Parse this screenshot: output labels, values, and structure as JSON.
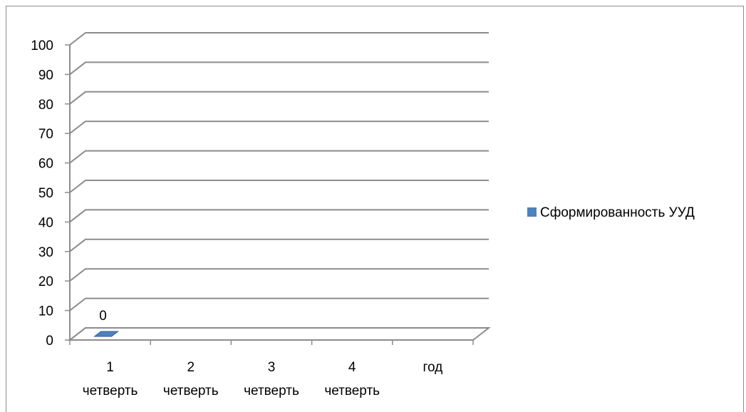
{
  "chart_data": {
    "type": "bar",
    "style": "3d-column",
    "categories": [
      [
        "1",
        "четверть"
      ],
      [
        "2",
        "четверть"
      ],
      [
        "3",
        "четверть"
      ],
      [
        "4",
        "четверть"
      ],
      [
        "год"
      ]
    ],
    "series": [
      {
        "name": "Сформированность УУД",
        "values": [
          0,
          null,
          null,
          null,
          null
        ],
        "color": "#4F81BD"
      }
    ],
    "data_labels": [
      "0",
      null,
      null,
      null,
      null
    ],
    "ylim": [
      0,
      100
    ],
    "yticks": [
      0,
      10,
      20,
      30,
      40,
      50,
      60,
      70,
      80,
      90,
      100
    ],
    "grid": true,
    "legend_position": "right",
    "gridline_color": "#8c8c8c"
  }
}
